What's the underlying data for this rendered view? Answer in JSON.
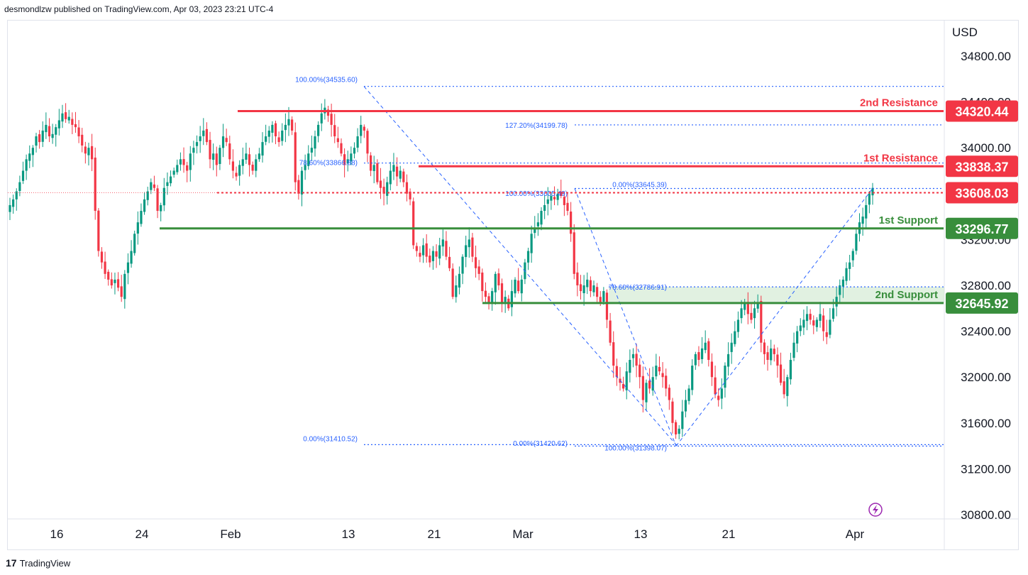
{
  "header": {
    "publisher": "desmondlzw published on TradingView.com, Apr 03, 2023 23:21 UTC-4"
  },
  "footer": {
    "brand": "TradingView",
    "logo": "17"
  },
  "chart_data": {
    "type": "candlestick",
    "currency": "USD",
    "y_range": [
      30750,
      35000
    ],
    "y_ticks": [
      34800,
      34400,
      34000,
      33600,
      33200,
      32800,
      32400,
      32000,
      31600,
      31200,
      30800
    ],
    "y_tick_labels": [
      "34800.00",
      "34400.00",
      "34000.00",
      "33600.00",
      "33200.00",
      "32800.00",
      "32400.00",
      "32000.00",
      "31600.00",
      "31200.00",
      "30800.00"
    ],
    "x_ticks": [
      "16",
      "24",
      "Feb",
      "13",
      "21",
      "Mar",
      "13",
      "21",
      "Apr"
    ],
    "levels": [
      {
        "name": "2nd Resistance",
        "value": 34320.44,
        "label": "34320.44",
        "color": "#f23645"
      },
      {
        "name": "1st Resistance",
        "value": 33838.37,
        "label": "33838.37",
        "color": "#f23645"
      },
      {
        "name": "",
        "value": 33608.03,
        "label": "33608.03",
        "color": "#f23645"
      },
      {
        "name": "1st Support",
        "value": 33296.77,
        "label": "33296.77",
        "color": "#388e3c"
      },
      {
        "name": "2nd Support",
        "value": 32645.92,
        "label": "32645.92",
        "color": "#388e3c"
      }
    ],
    "fib_labels": [
      {
        "text": "100.00%(34535.60)",
        "value": 34535.6
      },
      {
        "text": "127.20%(34199.78)",
        "value": 34199.78
      },
      {
        "text": "78.60%(33866.88)",
        "value": 33866.88
      },
      {
        "text": "100.00%(33605.49)",
        "value": 33605.49
      },
      {
        "text": "0.00%(33645.39)",
        "value": 33645.39
      },
      {
        "text": "78.60%(32786.91)",
        "value": 32786.91
      },
      {
        "text": "0.00%(31410.52)",
        "value": 31410.52
      },
      {
        "text": "0.00%(31420.62)",
        "value": 31420.62
      },
      {
        "text": "100.00%(31398.07)",
        "value": 31398.07
      }
    ],
    "series_close": [
      33500,
      33550,
      33620,
      33700,
      33800,
      33900,
      33950,
      34000,
      34100,
      34050,
      34150,
      34200,
      34100,
      34120,
      34180,
      34240,
      34300,
      34250,
      34270,
      34200,
      34180,
      34100,
      34020,
      33950,
      34000,
      33900,
      33450,
      33100,
      33000,
      32900,
      32850,
      32800,
      32850,
      32780,
      32700,
      32900,
      33000,
      33100,
      33250,
      33350,
      33450,
      33550,
      33620,
      33700,
      33650,
      33450,
      33500,
      33650,
      33700,
      33750,
      33800,
      33850,
      33900,
      33850,
      33800,
      33950,
      34000,
      34050,
      34100,
      34150,
      34050,
      33900,
      33950,
      33850,
      34000,
      34100,
      34050,
      33900,
      33800,
      33750,
      33850,
      33900,
      33950,
      33850,
      33800,
      33900,
      33950,
      34050,
      34100,
      34150,
      34200,
      34100,
      34050,
      34150,
      34200,
      34250,
      34150,
      33700,
      33600,
      33800,
      33850,
      33950,
      34000,
      34100,
      34200,
      34300,
      34350,
      34280,
      34200,
      34100,
      34050,
      33950,
      33850,
      33900,
      33950,
      34000,
      34100,
      34200,
      34150,
      33950,
      33800,
      33850,
      33700,
      33650,
      33600,
      33700,
      33800,
      33850,
      33750,
      33800,
      33700,
      33600,
      33550,
      33150,
      33100,
      33050,
      33150,
      33050,
      33000,
      33100,
      33050,
      33150,
      33200,
      33050,
      32950,
      32700,
      32800,
      32900,
      33050,
      33150,
      33200,
      33050,
      32950,
      32900,
      32750,
      32700,
      32650,
      32750,
      32900,
      32800,
      32650,
      32700,
      32600,
      32750,
      32850,
      32750,
      32850,
      33000,
      33100,
      33250,
      33300,
      33350,
      33450,
      33500,
      33550,
      33580,
      33550,
      33600,
      33580,
      33500,
      33450,
      33250,
      32900,
      32800,
      32750,
      32800,
      32850,
      32750,
      32800,
      32700,
      32650,
      32750,
      32500,
      32300,
      32100,
      32000,
      31950,
      31900,
      32050,
      32150,
      32200,
      32100,
      32000,
      31800,
      31950,
      31900,
      32000,
      32100,
      32050,
      32000,
      31900,
      31800,
      31600,
      31500,
      31550,
      31700,
      31800,
      31900,
      32100,
      32200,
      32150,
      32250,
      32300,
      32150,
      32000,
      31850,
      31800,
      31900,
      32100,
      32200,
      32300,
      32400,
      32500,
      32600,
      32650,
      32550,
      32500,
      32600,
      32650,
      32300,
      32200,
      32150,
      32250,
      32200,
      32100,
      31950,
      31850,
      32000,
      32150,
      32300,
      32400,
      32450,
      32500,
      32550,
      32500,
      32450,
      32500,
      32550,
      32400,
      32350,
      32500,
      32600,
      32700,
      32800,
      32850,
      32950,
      33000,
      33100,
      33250,
      33350,
      33400,
      33500,
      33600,
      33650
    ]
  }
}
